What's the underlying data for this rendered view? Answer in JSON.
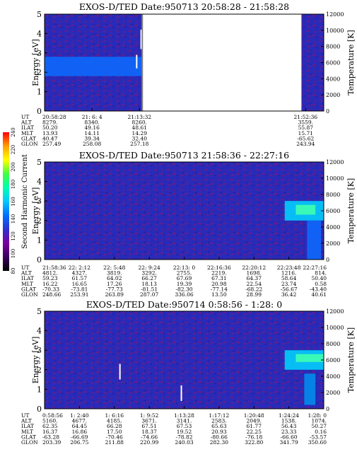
{
  "chart_data": [
    {
      "type": "heatmap",
      "title": "EXOS-D/TED   Date:950713   20:58:28 - 21:58:28",
      "ylabel": "Energy [eV]",
      "y2label": "Temperature [K]",
      "ylim": [
        0,
        5
      ],
      "y2lim": [
        0,
        12000
      ],
      "yticks": [
        0,
        1,
        2,
        3,
        4,
        5
      ],
      "y2ticks": [
        0,
        2000,
        4000,
        6000,
        8000,
        10000,
        12000
      ],
      "data_gaps": [
        [
          0.35,
          0.92
        ]
      ],
      "features": [
        {
          "kind": "band",
          "x0": 0.0,
          "x1": 0.35,
          "y0": 1.8,
          "y1": 2.8,
          "level": 0.55
        },
        {
          "kind": "spike",
          "x": 0.346,
          "y0": 3.2,
          "y1": 4.2
        },
        {
          "kind": "spike",
          "x": 0.33,
          "y0": 2.2,
          "y1": 2.9
        }
      ],
      "table": {
        "rows": [
          "UT",
          "ALT",
          "ILAT",
          "MLT",
          "GLAT",
          "GLON"
        ],
        "columns": [
          {
            "x": 0.0,
            "values": [
              "20:58:28",
              "8279.",
              "50.20",
              "13.93",
              "40.47",
              "257.49"
            ]
          },
          {
            "x": 0.17,
            "values": [
              "21: 6: 4",
              "8340.",
              "49.16",
              "14.11",
              "39.34",
              "258.08"
            ]
          },
          {
            "x": 0.34,
            "values": [
              "21:13:32",
              "8260.",
              "48.61",
              "14.29",
              "32.40",
              "257.18"
            ]
          },
          {
            "x": 0.935,
            "values": [
              "21:52:36",
              "3559.",
              "55.87",
              "15.71",
              "-65.62",
              "243.94"
            ]
          }
        ]
      }
    },
    {
      "type": "heatmap",
      "title": "EXOS-D/TED   Date:950713   21:58:36 - 22:27:16",
      "ylabel": "Energy [eV]",
      "y2label": "Temperature [K]",
      "ylim": [
        0,
        5
      ],
      "y2lim": [
        0,
        12000
      ],
      "yticks": [
        0,
        1,
        2,
        3,
        4,
        5
      ],
      "y2ticks": [
        0,
        2000,
        4000,
        6000,
        8000,
        10000,
        12000
      ],
      "data_gaps": [],
      "features": [
        {
          "kind": "band",
          "x0": 0.86,
          "x1": 1.0,
          "y0": 2.0,
          "y1": 3.0,
          "level": 0.75
        },
        {
          "kind": "band",
          "x0": 0.9,
          "x1": 0.97,
          "y0": 2.3,
          "y1": 2.8,
          "level": 1.0
        },
        {
          "kind": "band",
          "x0": 0.94,
          "x1": 0.99,
          "y0": 0.0,
          "y1": 2.0,
          "level": 0.6
        }
      ],
      "table": {
        "rows": [
          "UT",
          "ALT",
          "ILAT",
          "MLT",
          "GLAT",
          "GLON"
        ],
        "columns": [
          {
            "x": 0.0,
            "values": [
              "21:58:36",
              "4812.",
              "59.23",
              "16.22",
              "-70.33",
              "248.66"
            ]
          },
          {
            "x": 0.125,
            "values": [
              "22: 2:12",
              "4327.",
              "61.57",
              "16.65",
              "-73.81",
              "253.91"
            ]
          },
          {
            "x": 0.25,
            "values": [
              "22: 5:48",
              "3819.",
              "64.02",
              "17.26",
              "-77.73",
              "263.89"
            ]
          },
          {
            "x": 0.375,
            "values": [
              "22: 9:24",
              "3292.",
              "66.27",
              "18.13",
              "-81.51",
              "287.07"
            ]
          },
          {
            "x": 0.5,
            "values": [
              "22:13: 0",
              "2755.",
              "67.69",
              "19.39",
              "-82.30",
              "336.06"
            ]
          },
          {
            "x": 0.625,
            "values": [
              "22:16:36",
              "2219.",
              "67.31",
              "20.98",
              "-77.14",
              "13.50"
            ]
          },
          {
            "x": 0.75,
            "values": [
              "22:20:12",
              "1698.",
              "64.37",
              "22.54",
              "-68.22",
              "28.99"
            ]
          },
          {
            "x": 0.875,
            "values": [
              "22:23:48",
              "1216.",
              "58.64",
              "23.74",
              "-56.67",
              "36.42"
            ]
          },
          {
            "x": 1.0,
            "values": [
              "22:27:16",
              "814.",
              "50.40",
              "0.58",
              "-43.40",
              "40.61"
            ]
          }
        ]
      }
    },
    {
      "type": "heatmap",
      "title": "EXOS-D/TED   Date:950714   0:58:56 - 1:28: 0",
      "ylabel": "Energy [eV]",
      "y2label": "Temperature [K]",
      "ylim": [
        0,
        5
      ],
      "y2lim": [
        0,
        12000
      ],
      "yticks": [
        0,
        1,
        2,
        3,
        4,
        5
      ],
      "y2ticks": [
        0,
        2000,
        4000,
        6000,
        8000,
        10000,
        12000
      ],
      "data_gaps": [],
      "features": [
        {
          "kind": "band",
          "x0": 0.86,
          "x1": 1.0,
          "y0": 2.0,
          "y1": 3.0,
          "level": 0.75
        },
        {
          "kind": "band",
          "x0": 0.9,
          "x1": 1.0,
          "y0": 2.4,
          "y1": 2.8,
          "level": 1.0
        },
        {
          "kind": "band",
          "x0": 0.93,
          "x1": 0.97,
          "y0": 0.2,
          "y1": 1.8,
          "level": 0.5
        },
        {
          "kind": "spike",
          "x": 0.27,
          "y0": 1.5,
          "y1": 2.3
        },
        {
          "kind": "spike",
          "x": 0.49,
          "y0": 0.4,
          "y1": 1.2
        }
      ],
      "table": {
        "rows": [
          "UT",
          "ALT",
          "ILAT",
          "MLT",
          "GLAT",
          "GLON"
        ],
        "columns": [
          {
            "x": 0.0,
            "values": [
              "0:58:56",
              "5160.",
              "62.35",
              "16.37",
              "-63.28",
              "203.39"
            ]
          },
          {
            "x": 0.125,
            "values": [
              "1: 2:40",
              "4677.",
              "64.45",
              "16.86",
              "-66.69",
              "206.75"
            ]
          },
          {
            "x": 0.25,
            "values": [
              "1: 6:16",
              "4185.",
              "66.28",
              "17.50",
              "-70.46",
              "211.88"
            ]
          },
          {
            "x": 0.375,
            "values": [
              "1: 9:52",
              "3671.",
              "67.51",
              "18.37",
              "-74.66",
              "220.99"
            ]
          },
          {
            "x": 0.5,
            "values": [
              "1:13:28",
              "3141.",
              "67.53",
              "19.52",
              "-78.82",
              "240.03"
            ]
          },
          {
            "x": 0.625,
            "values": [
              "1:17:12",
              "2583.",
              "65.63",
              "20.93",
              "-80.66",
              "282.30"
            ]
          },
          {
            "x": 0.75,
            "values": [
              "1:20:48",
              "2049.",
              "61.77",
              "22.25",
              "-76.18",
              "322.80"
            ]
          },
          {
            "x": 0.875,
            "values": [
              "1:24:24",
              "1538.",
              "56.43",
              "23.33",
              "-66.60",
              "341.79"
            ]
          },
          {
            "x": 1.0,
            "values": [
              "1:28: 0",
              "1074.",
              "50.27",
              "0.16",
              "-53.57",
              "350.60"
            ]
          }
        ]
      }
    }
  ],
  "colorbar": {
    "label": "Second Harmonic Current",
    "ticks": [
      "80",
      "100",
      "120",
      "140",
      "160",
      "180",
      "200",
      "220",
      "240"
    ],
    "range": [
      80,
      240
    ],
    "colors": [
      "#000000",
      "#3a0060",
      "#7a00a0",
      "#3030d0",
      "#0070ff",
      "#00c8ff",
      "#00ffb0",
      "#40ff40",
      "#ffff00",
      "#ffa000",
      "#ff3000",
      "#ff0000"
    ]
  }
}
